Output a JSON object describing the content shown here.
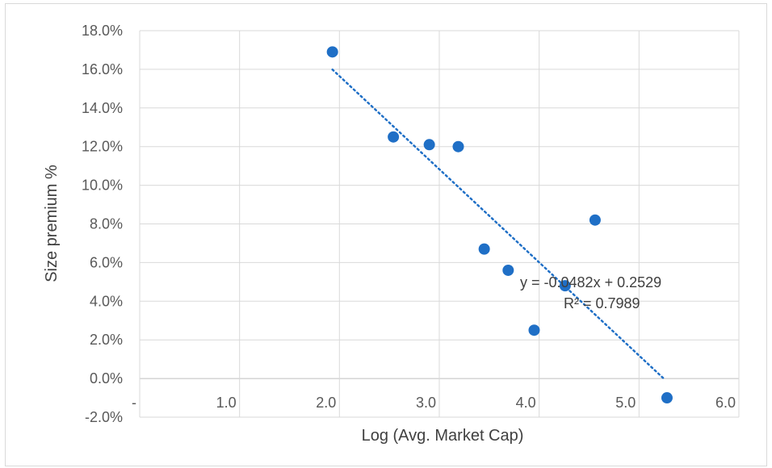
{
  "chart_data": {
    "type": "scatter",
    "xlabel": "Log (Avg. Market Cap)",
    "ylabel": "Size premium %",
    "xlim": [
      0,
      6
    ],
    "ylim": [
      -0.02,
      0.18
    ],
    "x_ticks": [
      {
        "value": 0,
        "label": "-"
      },
      {
        "value": 1,
        "label": "1.0"
      },
      {
        "value": 2,
        "label": "2.0"
      },
      {
        "value": 3,
        "label": "3.0"
      },
      {
        "value": 4,
        "label": "4.0"
      },
      {
        "value": 5,
        "label": "5.0"
      },
      {
        "value": 6,
        "label": "6.0"
      }
    ],
    "y_ticks": [
      {
        "value": -0.02,
        "label": "-2.0%"
      },
      {
        "value": 0.0,
        "label": "0.0%"
      },
      {
        "value": 0.02,
        "label": "2.0%"
      },
      {
        "value": 0.04,
        "label": "4.0%"
      },
      {
        "value": 0.06,
        "label": "6.0%"
      },
      {
        "value": 0.08,
        "label": "8.0%"
      },
      {
        "value": 0.1,
        "label": "10.0%"
      },
      {
        "value": 0.12,
        "label": "12.0%"
      },
      {
        "value": 0.14,
        "label": "14.0%"
      },
      {
        "value": 0.16,
        "label": "16.0%"
      },
      {
        "value": 0.18,
        "label": "18.0%"
      }
    ],
    "grid": true,
    "series": [
      {
        "color": "#1f6fc6",
        "points": [
          {
            "x": 1.93,
            "y": 0.169
          },
          {
            "x": 2.54,
            "y": 0.125
          },
          {
            "x": 2.9,
            "y": 0.121
          },
          {
            "x": 3.19,
            "y": 0.12
          },
          {
            "x": 3.45,
            "y": 0.067
          },
          {
            "x": 3.69,
            "y": 0.056
          },
          {
            "x": 3.95,
            "y": 0.025
          },
          {
            "x": 4.26,
            "y": 0.048
          },
          {
            "x": 4.56,
            "y": 0.082
          },
          {
            "x": 5.28,
            "y": -0.01
          }
        ]
      }
    ],
    "trendline": {
      "type": "linear",
      "slope": -0.0482,
      "intercept": 0.2529,
      "x_start": 1.93,
      "x_end": 5.25,
      "color": "#1f6fc6",
      "style": "dotted",
      "equation_label": "y = -0.0482x + 0.2529",
      "r2_label": "R² = 0.7989"
    }
  }
}
